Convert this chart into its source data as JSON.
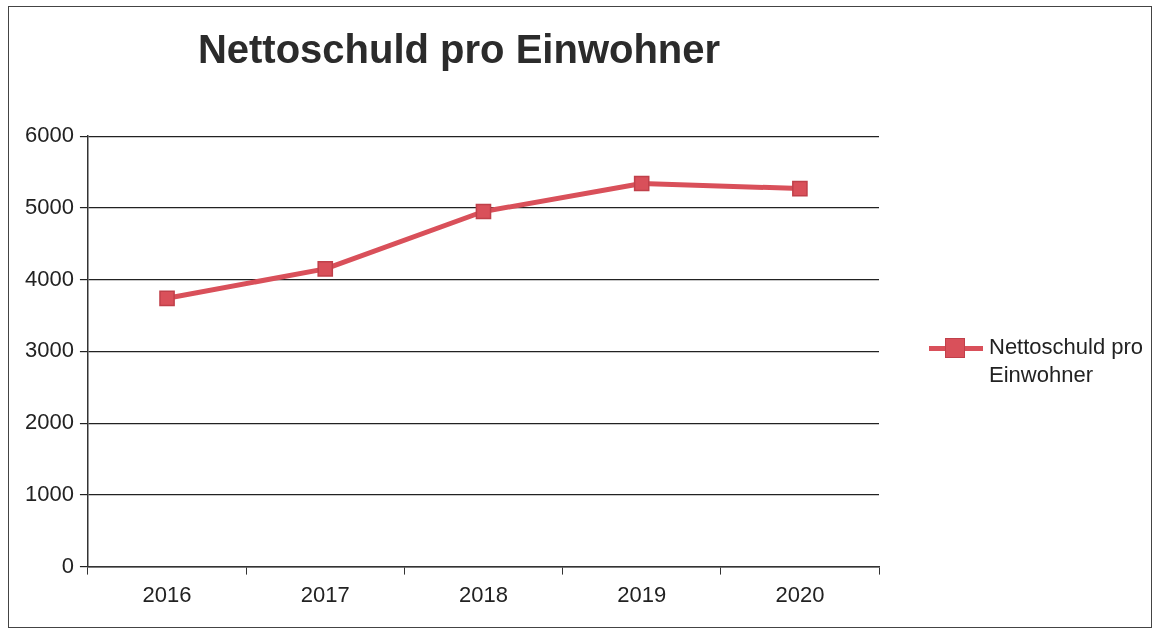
{
  "chart_data": {
    "type": "line",
    "title": "Nettoschuld pro Einwohner",
    "categories": [
      "2016",
      "2017",
      "2018",
      "2019",
      "2020"
    ],
    "series": [
      {
        "name": "Nettoschuld pro Einwohner",
        "color": "#d9505a",
        "values": [
          3740,
          4150,
          4950,
          5340,
          5270
        ]
      }
    ],
    "ylim": [
      0,
      6000
    ],
    "yticks": [
      0,
      1000,
      2000,
      3000,
      4000,
      5000,
      6000
    ],
    "grid": "y",
    "legend": "right",
    "marker": "square",
    "line_style": "solid"
  }
}
